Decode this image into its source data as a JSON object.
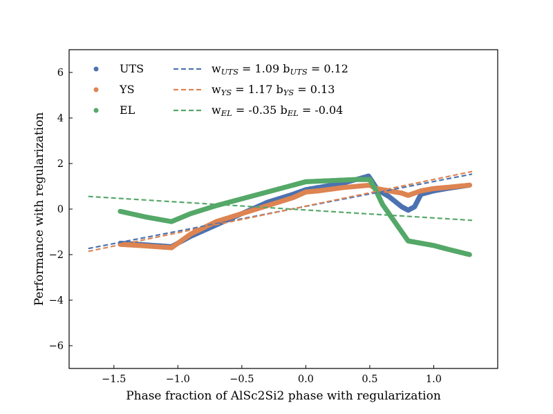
{
  "chart_data": {
    "type": "scatter",
    "xlabel": "Phase fraction of AlSc2Si2 phase with regularization",
    "ylabel": "Performance with regularization",
    "xlim": [
      -1.85,
      1.5
    ],
    "ylim": [
      -7,
      7
    ],
    "xticks": [
      -1.5,
      -1.0,
      -0.5,
      0.0,
      0.5,
      1.0
    ],
    "xtick_labels": [
      "−1.5",
      "−1.0",
      "−0.5",
      "0.0",
      "0.5",
      "1.0"
    ],
    "yticks": [
      -6,
      -4,
      -2,
      0,
      2,
      4,
      6
    ],
    "ytick_labels": [
      "−6",
      "−4",
      "−2",
      "0",
      "2",
      "4",
      "6"
    ],
    "grid": false,
    "legend_position": "top-left",
    "colors": {
      "UTS": "#4c72b0",
      "YS": "#dd8452",
      "EL": "#55a868"
    },
    "series": [
      {
        "name": "UTS",
        "color": "#4c72b0",
        "x": [
          -1.45,
          -1.3,
          -1.05,
          -0.9,
          -0.7,
          -0.5,
          -0.3,
          -0.1,
          0.0,
          0.1,
          0.3,
          0.49,
          0.52,
          0.56,
          0.65,
          0.75,
          0.8,
          0.85,
          0.9,
          1.0,
          1.1,
          1.28
        ],
        "y": [
          -1.5,
          -1.55,
          -1.65,
          -1.2,
          -0.7,
          -0.2,
          0.3,
          0.65,
          0.85,
          0.95,
          1.15,
          1.45,
          1.2,
          0.85,
          0.55,
          0.1,
          -0.05,
          0.1,
          0.65,
          0.8,
          0.9,
          1.05
        ]
      },
      {
        "name": "YS",
        "color": "#dd8452",
        "x": [
          -1.45,
          -1.3,
          -1.05,
          -0.9,
          -0.7,
          -0.5,
          -0.3,
          -0.1,
          0.0,
          0.1,
          0.3,
          0.5,
          0.55,
          0.65,
          0.75,
          0.8,
          0.9,
          1.0,
          1.1,
          1.28
        ],
        "y": [
          -1.55,
          -1.6,
          -1.7,
          -1.1,
          -0.55,
          -0.2,
          0.15,
          0.5,
          0.75,
          0.8,
          0.95,
          1.05,
          0.9,
          0.8,
          0.7,
          0.6,
          0.8,
          0.9,
          0.95,
          1.05
        ]
      },
      {
        "name": "EL",
        "color": "#55a868",
        "x": [
          -1.45,
          -1.25,
          -1.05,
          -0.9,
          -0.7,
          -0.5,
          -0.3,
          -0.1,
          0.0,
          0.2,
          0.4,
          0.5,
          0.55,
          0.6,
          0.7,
          0.8,
          0.9,
          1.0,
          1.1,
          1.28
        ],
        "y": [
          -0.1,
          -0.35,
          -0.55,
          -0.2,
          0.15,
          0.45,
          0.75,
          1.05,
          1.2,
          1.25,
          1.3,
          1.3,
          0.8,
          0.2,
          -0.6,
          -1.4,
          -1.5,
          -1.6,
          -1.75,
          -2.0
        ]
      }
    ],
    "fits": [
      {
        "label_main": "w",
        "label_sub": "UTS",
        "label_mid": " = 1.09  b",
        "label_sub2": "UTS",
        "label_end": " = 0.12",
        "w": 1.09,
        "b": 0.12,
        "color": "#4c72b0",
        "style": "dashed",
        "x_range": [
          -1.7,
          1.3
        ]
      },
      {
        "label_main": "w",
        "label_sub": "YS",
        "label_mid": " = 1.17  b",
        "label_sub2": "YS",
        "label_end": " = 0.13",
        "w": 1.17,
        "b": 0.13,
        "color": "#dd8452",
        "style": "dashed",
        "x_range": [
          -1.7,
          1.3
        ]
      },
      {
        "label_main": "w",
        "label_sub": "EL",
        "label_mid": " = -0.35  b",
        "label_sub2": "EL",
        "label_end": " = -0.04",
        "w": -0.35,
        "b": -0.04,
        "color": "#55a868",
        "style": "dashed",
        "x_range": [
          -1.7,
          1.3
        ]
      }
    ]
  }
}
